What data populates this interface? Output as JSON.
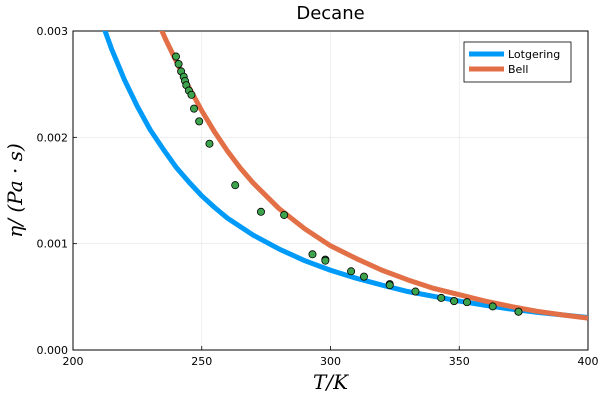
{
  "chart_data": {
    "type": "line",
    "title": "Decane",
    "xlabel": "T/K",
    "ylabel": "η/ (Pa · s)",
    "xlim": [
      200,
      400
    ],
    "ylim": [
      0,
      0.003
    ],
    "x_ticks": [
      200,
      250,
      300,
      350,
      400
    ],
    "x_tick_labels": [
      "200",
      "250",
      "300",
      "350",
      "400"
    ],
    "y_ticks": [
      0,
      0.001,
      0.002,
      0.003
    ],
    "y_tick_labels": [
      "0.000",
      "0.001",
      "0.002",
      "0.003"
    ],
    "grid": true,
    "legend_position": "top-right",
    "series": [
      {
        "name": "Lotgering",
        "kind": "line",
        "color": "#009af9",
        "x": [
          212,
          215,
          220,
          225,
          230,
          235,
          240,
          245,
          250,
          255,
          260,
          270,
          280,
          290,
          300,
          310,
          320,
          330,
          340,
          350,
          360,
          370,
          380,
          390,
          400
        ],
        "y": [
          0.00303,
          0.00283,
          0.00254,
          0.00229,
          0.00207,
          0.00189,
          0.00172,
          0.00158,
          0.00145,
          0.00134,
          0.00124,
          0.00108,
          0.00095,
          0.00084,
          0.00075,
          0.000675,
          0.00061,
          0.00055,
          0.000505,
          0.00046,
          0.00042,
          0.000385,
          0.000355,
          0.00033,
          0.000305
        ]
      },
      {
        "name": "Bell",
        "kind": "line",
        "color": "#e26f46",
        "x": [
          234,
          236,
          238,
          240,
          242,
          245,
          248,
          250,
          255,
          260,
          265,
          270,
          280,
          290,
          300,
          310,
          320,
          330,
          340,
          350,
          360,
          370,
          380,
          390,
          400
        ],
        "y": [
          0.00303,
          0.00292,
          0.00282,
          0.00272,
          0.00262,
          0.00247,
          0.00234,
          0.00225,
          0.00205,
          0.00187,
          0.00171,
          0.00157,
          0.00133,
          0.00114,
          0.00098,
          0.00086,
          0.00075,
          0.00066,
          0.00058,
          0.00052,
          0.00046,
          0.00041,
          0.000365,
          0.00033,
          0.0003
        ]
      },
      {
        "name": "",
        "kind": "scatter",
        "color": "#3da44d",
        "x": [
          240,
          241,
          242,
          243,
          243.5,
          244,
          245,
          246,
          247,
          249,
          253,
          263,
          273,
          282,
          293,
          298,
          298,
          308,
          313,
          323,
          323,
          333,
          343,
          348,
          348,
          353,
          363,
          373,
          373
        ],
        "y": [
          0.00276,
          0.00269,
          0.00262,
          0.00257,
          0.00253,
          0.00249,
          0.00244,
          0.0024,
          0.00227,
          0.00215,
          0.00194,
          0.00155,
          0.0013,
          0.00127,
          0.0009,
          0.00085,
          0.00084,
          0.00074,
          0.00069,
          0.00062,
          0.00061,
          0.00055,
          0.00049,
          0.00046,
          0.00046,
          0.00045,
          0.00041,
          0.00036,
          0.00036
        ]
      }
    ]
  }
}
